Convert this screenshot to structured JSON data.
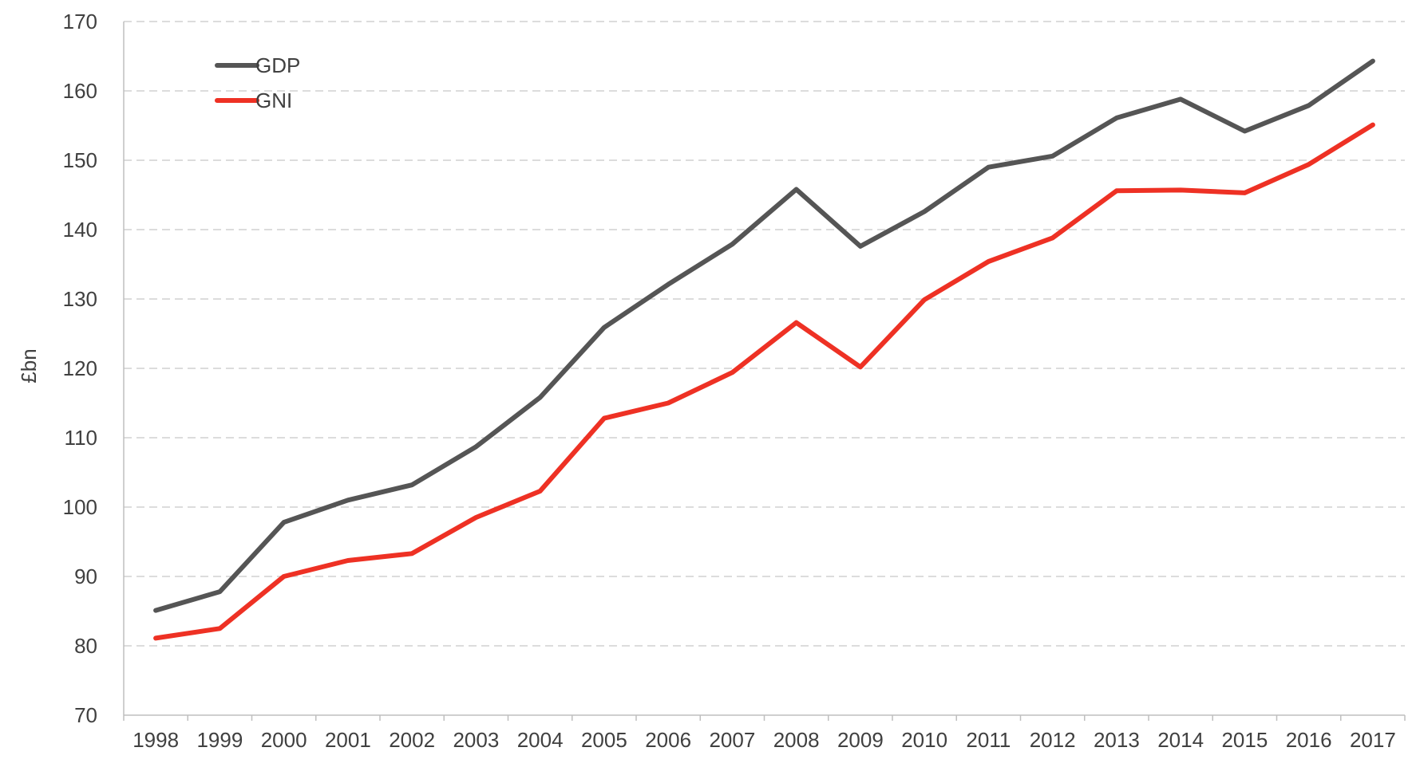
{
  "chart_data": {
    "type": "line",
    "title": "",
    "xlabel": "",
    "ylabel": "£bn",
    "ylim": [
      70,
      170
    ],
    "yticks": [
      70,
      80,
      90,
      100,
      110,
      120,
      130,
      140,
      150,
      160,
      170
    ],
    "grid": "horizontal dashed",
    "legend_position": "top-left",
    "categories": [
      "1998",
      "1999",
      "2000",
      "2001",
      "2002",
      "2003",
      "2004",
      "2005",
      "2006",
      "2007",
      "2008",
      "2009",
      "2010",
      "2011",
      "2012",
      "2013",
      "2014",
      "2015",
      "2016",
      "2017"
    ],
    "series": [
      {
        "name": "GDP",
        "color": "#555555",
        "values": [
          85.1,
          87.8,
          97.8,
          101.0,
          103.2,
          108.7,
          115.8,
          125.9,
          132.1,
          137.9,
          145.8,
          137.6,
          142.6,
          149.0,
          150.6,
          156.1,
          158.8,
          154.2,
          157.9,
          164.3
        ]
      },
      {
        "name": "GNI",
        "color": "#EE3124",
        "values": [
          81.1,
          82.5,
          90.0,
          92.3,
          93.3,
          98.5,
          102.3,
          112.8,
          115.0,
          119.4,
          126.6,
          120.2,
          129.9,
          135.4,
          138.8,
          145.6,
          145.7,
          145.3,
          149.4,
          155.1
        ]
      }
    ]
  }
}
